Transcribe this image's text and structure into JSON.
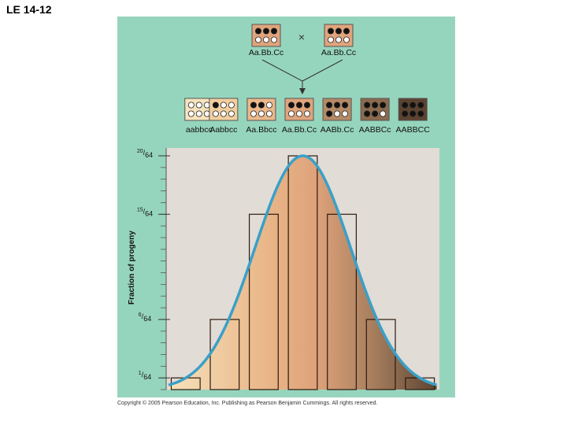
{
  "title": "LE 14-12",
  "copyright": "Copyright © 2005 Pearson Education, Inc. Publishing as Pearson Benjamin Cummings. All rights reserved.",
  "cross": {
    "symbol": "×",
    "parents": [
      {
        "genotype": "Aa.Bb.Cc",
        "dark_alleles": 3
      },
      {
        "genotype": "Aa.Bb.Cc",
        "dark_alleles": 3
      }
    ]
  },
  "colors": {
    "panel_bg": "#96d5bd",
    "plot_bg": "#e2dcd6",
    "curve": "#3aa0c8",
    "dark_allele": "#111111",
    "light_allele": "#ffffff",
    "phenotype_fills": [
      "#f7e3bd",
      "#f2cf9e",
      "#eab88a",
      "#e0a47c",
      "#b58a66",
      "#8b6a4e",
      "#5c4330"
    ]
  },
  "chart_data": {
    "type": "bar",
    "categories": [
      "aabbcc",
      "Aabbcc",
      "Aa.Bbcc",
      "Aa.Bb.Cc",
      "AABb.Cc",
      "AABBCc",
      "AABBCC"
    ],
    "dark_alleles": [
      0,
      1,
      2,
      3,
      4,
      5,
      6
    ],
    "values": [
      0.015625,
      0.09375,
      0.234375,
      0.3125,
      0.234375,
      0.09375,
      0.015625
    ],
    "value_labels_64ths": [
      1,
      6,
      15,
      20,
      15,
      6,
      1
    ],
    "ylabel": "Fraction of progeny",
    "xlabel": "",
    "ylim": [
      0,
      0.3125
    ],
    "yticks": [
      {
        "value": 0.015625,
        "num": "1",
        "den": "64"
      },
      {
        "value": 0.09375,
        "num": "6",
        "den": "64"
      },
      {
        "value": 0.234375,
        "num": "15",
        "den": "64"
      },
      {
        "value": 0.3125,
        "num": "20",
        "den": "64"
      }
    ],
    "minor_tick_count": 20,
    "curve": "normal distribution overlay"
  }
}
